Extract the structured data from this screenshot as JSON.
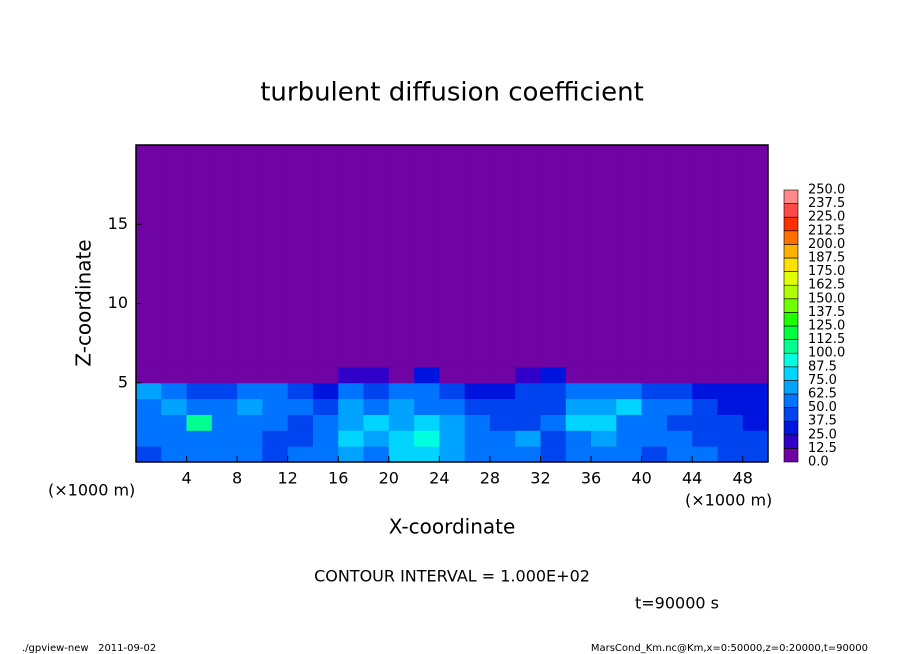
{
  "chart_data": {
    "type": "heatmap",
    "title": "turbulent diffusion coefficient",
    "x_label": "X-coordinate",
    "y_label": "Z-coordinate",
    "x_unit_label": "(×1000 m)",
    "xlim": [
      0,
      50
    ],
    "xticks": [
      4,
      8,
      12,
      16,
      20,
      24,
      28,
      32,
      36,
      40,
      44,
      48
    ],
    "ylim": [
      0,
      20
    ],
    "yticks": [
      5,
      10,
      15
    ],
    "x_edges": [
      0,
      2,
      4,
      6,
      8,
      10,
      12,
      14,
      16,
      18,
      20,
      22,
      24,
      26,
      28,
      30,
      32,
      34,
      36,
      38,
      40,
      42,
      44,
      46,
      48,
      50
    ],
    "z_edges": [
      0,
      1,
      2,
      3,
      4,
      5,
      6,
      20
    ],
    "values": [
      [
        45,
        50,
        55,
        60,
        50,
        45,
        55,
        50,
        70,
        60,
        75,
        80,
        65,
        50,
        55,
        60,
        45,
        55,
        60,
        50,
        45,
        55,
        50,
        40,
        45
      ],
      [
        50,
        55,
        60,
        50,
        55,
        45,
        40,
        60,
        75,
        70,
        80,
        90,
        70,
        55,
        60,
        65,
        40,
        60,
        70,
        55,
        50,
        50,
        45,
        40,
        40
      ],
      [
        55,
        60,
        100,
        50,
        55,
        50,
        45,
        55,
        70,
        75,
        70,
        75,
        65,
        60,
        45,
        40,
        50,
        75,
        80,
        60,
        55,
        45,
        40,
        45,
        35
      ],
      [
        60,
        65,
        60,
        55,
        65,
        60,
        50,
        45,
        65,
        60,
        70,
        60,
        55,
        45,
        40,
        45,
        40,
        70,
        70,
        75,
        60,
        50,
        40,
        35,
        30
      ],
      [
        70,
        50,
        40,
        45,
        55,
        60,
        45,
        30,
        60,
        45,
        50,
        55,
        45,
        30,
        35,
        45,
        40,
        55,
        55,
        50,
        40,
        40,
        30,
        25,
        30
      ],
      [
        5,
        5,
        5,
        5,
        5,
        5,
        5,
        5,
        20,
        15,
        10,
        25,
        5,
        5,
        5,
        20,
        25,
        10,
        5,
        5,
        5,
        5,
        5,
        5,
        5
      ],
      [
        5,
        5,
        5,
        5,
        5,
        5,
        5,
        5,
        5,
        5,
        5,
        5,
        5,
        5,
        5,
        5,
        5,
        5,
        5,
        5,
        5,
        5,
        5,
        5,
        5
      ]
    ],
    "colorbar": {
      "levels": [
        {
          "value": 0,
          "label": "0.0"
        },
        {
          "value": 12.5,
          "label": "12.5"
        },
        {
          "value": 25,
          "label": "25.0"
        },
        {
          "value": 37.5,
          "label": "37.5"
        },
        {
          "value": 50,
          "label": "50.0"
        },
        {
          "value": 62.5,
          "label": "62.5"
        },
        {
          "value": 75,
          "label": "75.0"
        },
        {
          "value": 87.5,
          "label": "87.5"
        },
        {
          "value": 100,
          "label": "100.0"
        },
        {
          "value": 112.5,
          "label": "112.5"
        },
        {
          "value": 125,
          "label": "125.0"
        },
        {
          "value": 137.5,
          "label": "137.5"
        },
        {
          "value": 150,
          "label": "150.0"
        },
        {
          "value": 162.5,
          "label": "162.5"
        },
        {
          "value": 175,
          "label": "175.0"
        },
        {
          "value": 187.5,
          "label": "187.5"
        },
        {
          "value": 200,
          "label": "200.0"
        },
        {
          "value": 212.5,
          "label": "212.5"
        },
        {
          "value": 225,
          "label": "225.0"
        },
        {
          "value": 237.5,
          "label": "237.5"
        },
        {
          "value": 250,
          "label": "250.0"
        }
      ],
      "colors": [
        "#7003a3",
        "#3000c8",
        "#0014e0",
        "#0044f0",
        "#0074ff",
        "#00a4ff",
        "#00d4ff",
        "#00ffe0",
        "#00ff90",
        "#00ff40",
        "#20ff00",
        "#70ff00",
        "#b0ff00",
        "#e0ff00",
        "#ffe000",
        "#ffb000",
        "#ff7000",
        "#ff3000",
        "#ff4848",
        "#ff8888"
      ]
    },
    "contour_interval": "CONTOUR INTERVAL = 1.000E+02",
    "time_label": "t=90000 s",
    "footer_left": "./gpview-new   2011-09-02",
    "footer_right": "MarsCond_Km.nc@Km,x=0:50000,z=0:20000,t=90000"
  }
}
